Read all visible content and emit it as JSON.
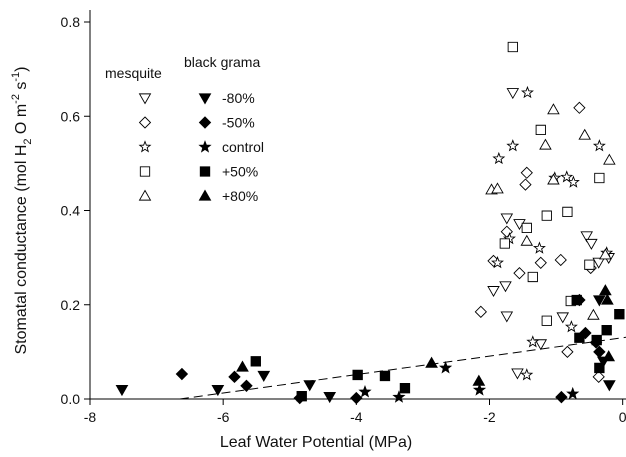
{
  "chart_data": {
    "type": "scatter",
    "xlabel": "Leaf Water Potential (MPa)",
    "ylabel": [
      "Stomatal conductance (mol H",
      "2",
      " O m",
      "-2",
      " s",
      "-1",
      ")"
    ],
    "xlim": [
      -8,
      0.05
    ],
    "ylim": [
      0,
      0.8
    ],
    "xticks": [
      -8,
      -6,
      -4,
      -2,
      0
    ],
    "yticks": [
      {
        "value": 0,
        "label": "0.0"
      },
      0.2,
      0.4,
      0.6,
      0.8
    ],
    "species": [
      "mesquite",
      "black grama"
    ],
    "treatments": [
      "-80%",
      "-50%",
      "control",
      "+50%",
      "+80%"
    ],
    "markers": [
      "triangle-down",
      "diamond",
      "star",
      "square",
      "triangle-up"
    ],
    "color": "#000000",
    "trend_line": {
      "x": [
        -6.65,
        0.05
      ],
      "y": [
        0,
        0.131
      ]
    },
    "series": [
      {
        "species": 0,
        "treatment": 0,
        "filled": false,
        "x": [
          -1.74,
          -1.76,
          -1.74,
          -1.55,
          -1.94,
          -1.58,
          -1.23,
          -0.9,
          -0.54,
          -0.47,
          -0.36,
          -1.65,
          -0.21
        ],
        "y": [
          0.176,
          0.24,
          0.384,
          0.372,
          0.23,
          0.055,
          0.117,
          0.174,
          0.346,
          0.33,
          0.29,
          0.65,
          0.3
        ]
      },
      {
        "species": 0,
        "treatment": 1,
        "filled": false,
        "x": [
          -2.13,
          -1.94,
          -1.74,
          -1.55,
          -1.44,
          -1.46,
          -1.23,
          -0.83,
          -0.93,
          -0.65,
          -0.48,
          -0.36
        ],
        "y": [
          0.185,
          0.293,
          0.355,
          0.267,
          0.48,
          0.455,
          0.289,
          0.1,
          0.295,
          0.618,
          0.278,
          0.047
        ]
      },
      {
        "species": 0,
        "treatment": 2,
        "filled": false,
        "x": [
          -1.86,
          -1.65,
          -1.43,
          -1.88,
          -1.25,
          -1.02,
          -0.84,
          -0.74,
          -0.35,
          -0.24,
          -1.35,
          -1.44,
          -0.77,
          -1.7
        ],
        "y": [
          0.51,
          0.537,
          0.65,
          0.289,
          0.32,
          0.469,
          0.471,
          0.46,
          0.537,
          0.31,
          0.121,
          0.051,
          0.153,
          0.34
        ]
      },
      {
        "species": 0,
        "treatment": 3,
        "filled": false,
        "x": [
          -1.65,
          -1.23,
          -1.14,
          -0.83,
          -1.35,
          -1.77,
          -1.44,
          -1.14,
          -0.35,
          -0.78,
          -0.5
        ],
        "y": [
          0.747,
          0.571,
          0.389,
          0.397,
          0.259,
          0.33,
          0.363,
          0.166,
          0.469,
          0.208,
          0.285
        ]
      },
      {
        "species": 0,
        "treatment": 4,
        "filled": false,
        "x": [
          -1.97,
          -1.16,
          -1.04,
          -1.04,
          -0.57,
          -0.2,
          -1.44,
          -0.26,
          -0.44,
          -1.88
        ],
        "y": [
          0.444,
          0.539,
          0.614,
          0.465,
          0.56,
          0.507,
          0.335,
          0.306,
          0.178,
          0.446
        ]
      },
      {
        "species": 1,
        "treatment": 0,
        "filled": true,
        "x": [
          -7.52,
          -6.08,
          -5.39,
          -4.7,
          -4.4,
          -0.2,
          -0.35,
          -0.29
        ],
        "y": [
          0.02,
          0.02,
          0.05,
          0.03,
          0.005,
          0.03,
          0.21,
          0.08
        ]
      },
      {
        "species": 1,
        "treatment": 1,
        "filled": true,
        "x": [
          -6.62,
          -5.83,
          -5.65,
          -4.85,
          -4.0,
          -0.92,
          -0.56,
          -0.65,
          -0.35,
          -0.4
        ],
        "y": [
          0.053,
          0.047,
          0.028,
          0.002,
          0.002,
          0.004,
          0.14,
          0.21,
          0.1,
          0.12
        ]
      },
      {
        "species": 1,
        "treatment": 2,
        "filled": true,
        "x": [
          -3.87,
          -3.36,
          -2.66,
          -2.15,
          -0.75
        ],
        "y": [
          0.015,
          0.004,
          0.066,
          0.019,
          0.011
        ]
      },
      {
        "species": 1,
        "treatment": 3,
        "filled": true,
        "x": [
          -5.51,
          -4.82,
          -3.98,
          -3.57,
          -3.27,
          -0.69,
          -0.65,
          -0.39,
          -0.35,
          -0.24,
          -0.05
        ],
        "y": [
          0.08,
          0.006,
          0.051,
          0.049,
          0.023,
          0.21,
          0.13,
          0.125,
          0.066,
          0.146,
          0.18
        ]
      },
      {
        "species": 1,
        "treatment": 4,
        "filled": true,
        "x": [
          -5.71,
          -2.87,
          -2.16,
          -0.26,
          -0.23,
          -0.21
        ],
        "y": [
          0.068,
          0.076,
          0.038,
          0.23,
          0.21,
          0.09
        ]
      }
    ]
  }
}
